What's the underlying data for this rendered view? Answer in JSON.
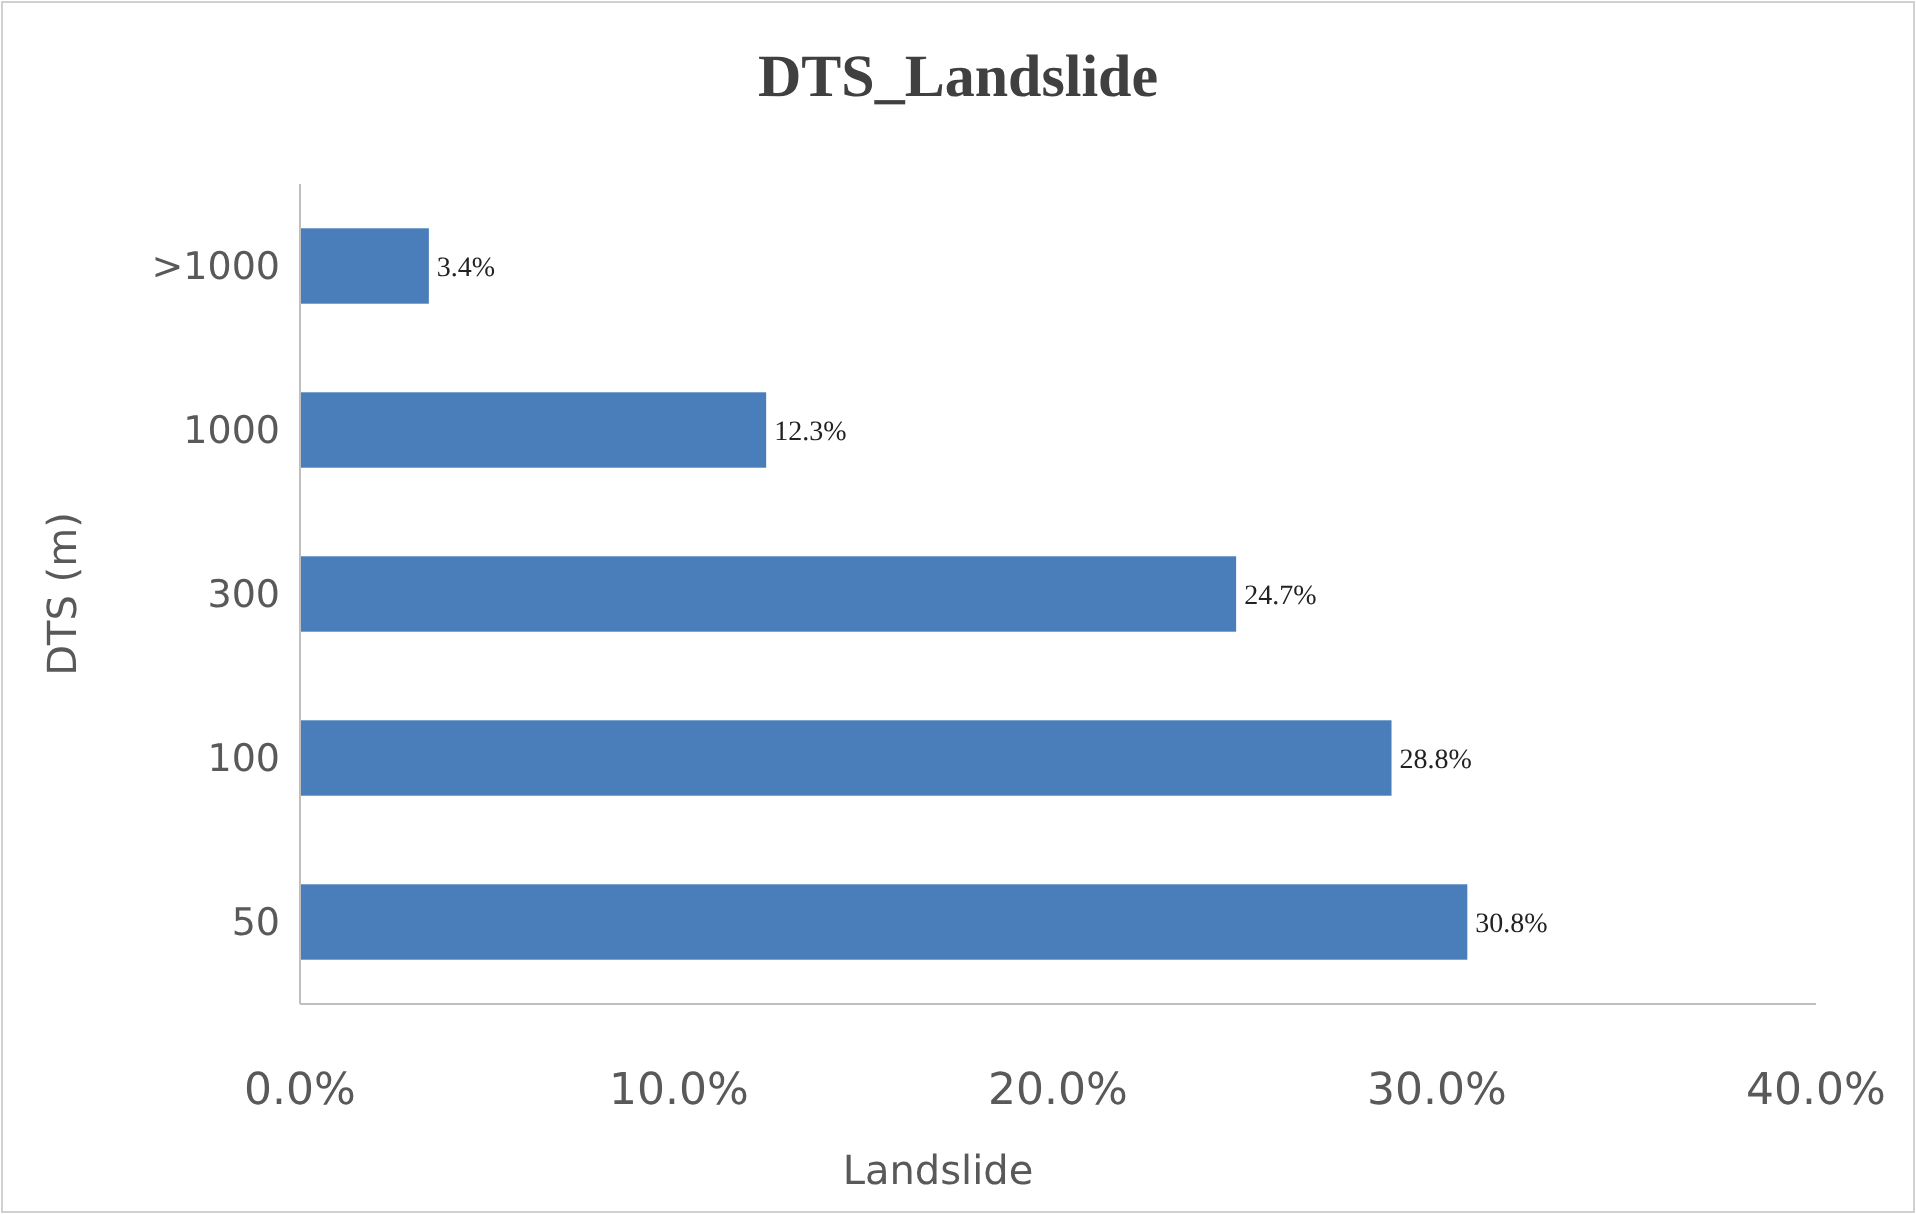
{
  "chart_data": {
    "type": "bar",
    "orientation": "horizontal",
    "title": "DTS_Landslide",
    "xlabel": "Landslide",
    "ylabel": "DTS (m)",
    "categories": [
      ">1000",
      "1000",
      "300",
      "100",
      "50"
    ],
    "values": [
      3.4,
      12.3,
      24.7,
      28.8,
      30.8
    ],
    "value_labels": [
      "3.4%",
      "12.3%",
      "24.7%",
      "28.8%",
      "30.8%"
    ],
    "color": "#4a7ebb",
    "xlim": [
      0,
      40
    ],
    "xticks": [
      {
        "value": 0,
        "label": "0.0%"
      },
      {
        "value": 10,
        "label": "10.0%"
      },
      {
        "value": 20,
        "label": "20.0%"
      },
      {
        "value": 30,
        "label": "30.0%"
      },
      {
        "value": 40,
        "label": "40.0%"
      }
    ],
    "grid": false
  }
}
